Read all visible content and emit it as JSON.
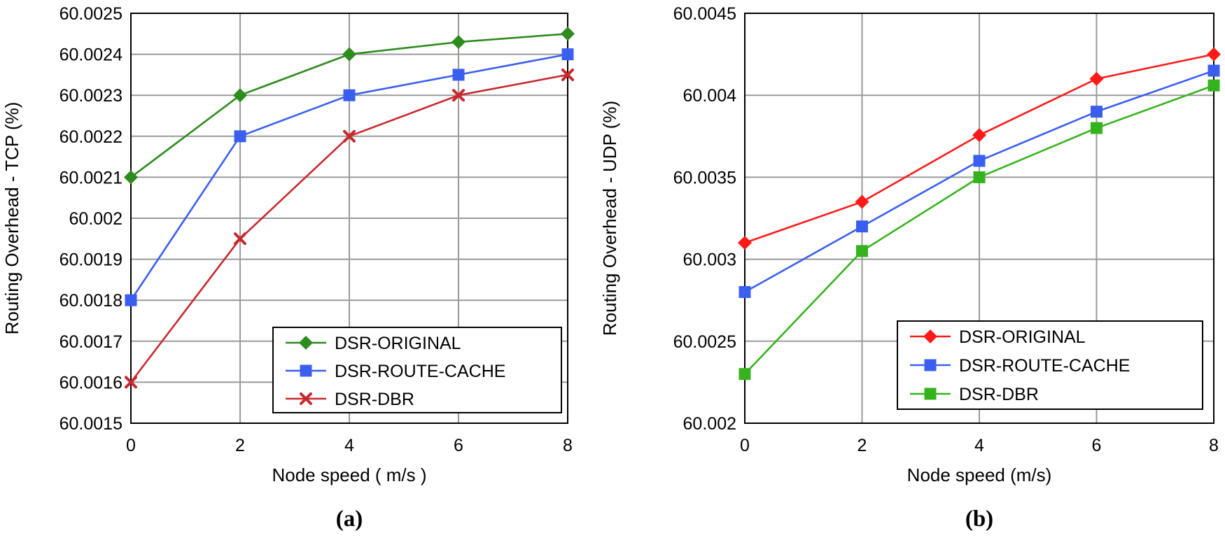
{
  "chart_data": [
    {
      "type": "line",
      "title": "",
      "caption": "(a)",
      "xlabel": "Node speed ( m/s )",
      "ylabel": "Routing Overhead - TCP (%)",
      "x": [
        0,
        2,
        4,
        6,
        8
      ],
      "xticks": [
        "0",
        "2",
        "4",
        "6",
        "8"
      ],
      "xlim": [
        0,
        8
      ],
      "ylim": [
        60.0015,
        60.0025
      ],
      "yticks": [
        "60.0015",
        "60.0016",
        "60.0017",
        "60.0018",
        "60.0019",
        "60.002",
        "60.0021",
        "60.0022",
        "60.0023",
        "60.0024",
        "60.0025"
      ],
      "ytick_values": [
        60.0015,
        60.0016,
        60.0017,
        60.0018,
        60.0019,
        60.002,
        60.0021,
        60.0022,
        60.0023,
        60.0024,
        60.0025
      ],
      "grid": true,
      "legend_position": "bottom-right",
      "series": [
        {
          "name": "DSR-ORIGINAL",
          "color": "#2e8b1e",
          "marker": "diamond",
          "values": [
            60.0021,
            60.0023,
            60.0024,
            60.00243,
            60.00245
          ]
        },
        {
          "name": "DSR-ROUTE-CACHE",
          "color": "#3a5ff0",
          "marker": "square",
          "values": [
            60.0018,
            60.0022,
            60.0023,
            60.00235,
            60.0024
          ]
        },
        {
          "name": "DSR-DBR",
          "color": "#c8282d",
          "marker": "cross",
          "values": [
            60.0016,
            60.00195,
            60.0022,
            60.0023,
            60.00235
          ]
        }
      ]
    },
    {
      "type": "line",
      "title": "",
      "caption": "(b)",
      "xlabel": "Node speed (m/s)",
      "ylabel": "Routing Overhead - UDP (%)",
      "x": [
        0,
        2,
        4,
        6,
        8
      ],
      "xticks": [
        "0",
        "2",
        "4",
        "6",
        "8"
      ],
      "xlim": [
        0,
        8
      ],
      "ylim": [
        60.002,
        60.0045
      ],
      "yticks": [
        "60.002",
        "60.0025",
        "60.003",
        "60.0035",
        "60.004",
        "60.0045"
      ],
      "ytick_values": [
        60.002,
        60.0025,
        60.003,
        60.0035,
        60.004,
        60.0045
      ],
      "grid": true,
      "legend_position": "bottom-right",
      "series": [
        {
          "name": "DSR-ORIGINAL",
          "color": "#ff1a1a",
          "marker": "diamond",
          "values": [
            60.0031,
            60.00335,
            60.003757,
            60.0041,
            60.00425
          ]
        },
        {
          "name": "DSR-ROUTE-CACHE",
          "color": "#3a5ff0",
          "marker": "square",
          "values": [
            60.0028,
            60.0032,
            60.0036,
            60.0039,
            60.00415
          ]
        },
        {
          "name": "DSR-DBR",
          "color": "#35b31c",
          "marker": "square",
          "values": [
            60.0023,
            60.00305,
            60.0035,
            60.0038,
            60.00406
          ]
        }
      ]
    }
  ]
}
